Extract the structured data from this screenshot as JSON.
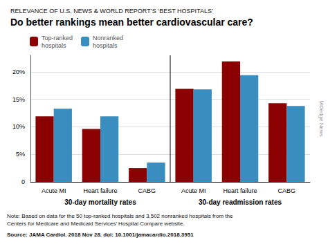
{
  "chart_data": {
    "type": "bar",
    "subtitle": "RELEVANCE OF U.S. NEWS & WORLD REPORT’S ‘BEST HOSPITALS’",
    "title": "Do better rankings mean better cardiovascular care?",
    "categories": [
      "Acute MI",
      "Heart failure",
      "CABG",
      "Acute MI",
      "Heart failure",
      "CABG"
    ],
    "series": [
      {
        "name": "Top-ranked\nhospitals",
        "color": "#8B0000",
        "values": [
          11.9,
          9.6,
          2.5,
          16.9,
          21.9,
          14.3
        ]
      },
      {
        "name": "Nonranked\nhospitals",
        "color": "#3A8DBF",
        "values": [
          13.3,
          11.9,
          3.5,
          16.8,
          19.4,
          13.8
        ]
      }
    ],
    "ylim": [
      0,
      23
    ],
    "yticks": [
      0,
      {
        "value": 5,
        "label": "5%"
      },
      {
        "value": 10,
        "label": "10%"
      },
      {
        "value": 15,
        "label": "15%"
      },
      {
        "value": 20,
        "label": "20%"
      }
    ],
    "grid": true,
    "legend": "upper left",
    "annotations": [
      "30-day mortality rates",
      "30-day readmission rates",
      "Note: Based on data for the 50 top-ranked hospitals and 3,502 nonranked hospitals from the\nCenters for Medicare and Medicaid Services’ Hospital Compare website.",
      "Source: JAMA Cardiol. 2018 Nov 28. doi: 10.1001/jamacardio.2018.3951",
      "MDedge News"
    ]
  }
}
